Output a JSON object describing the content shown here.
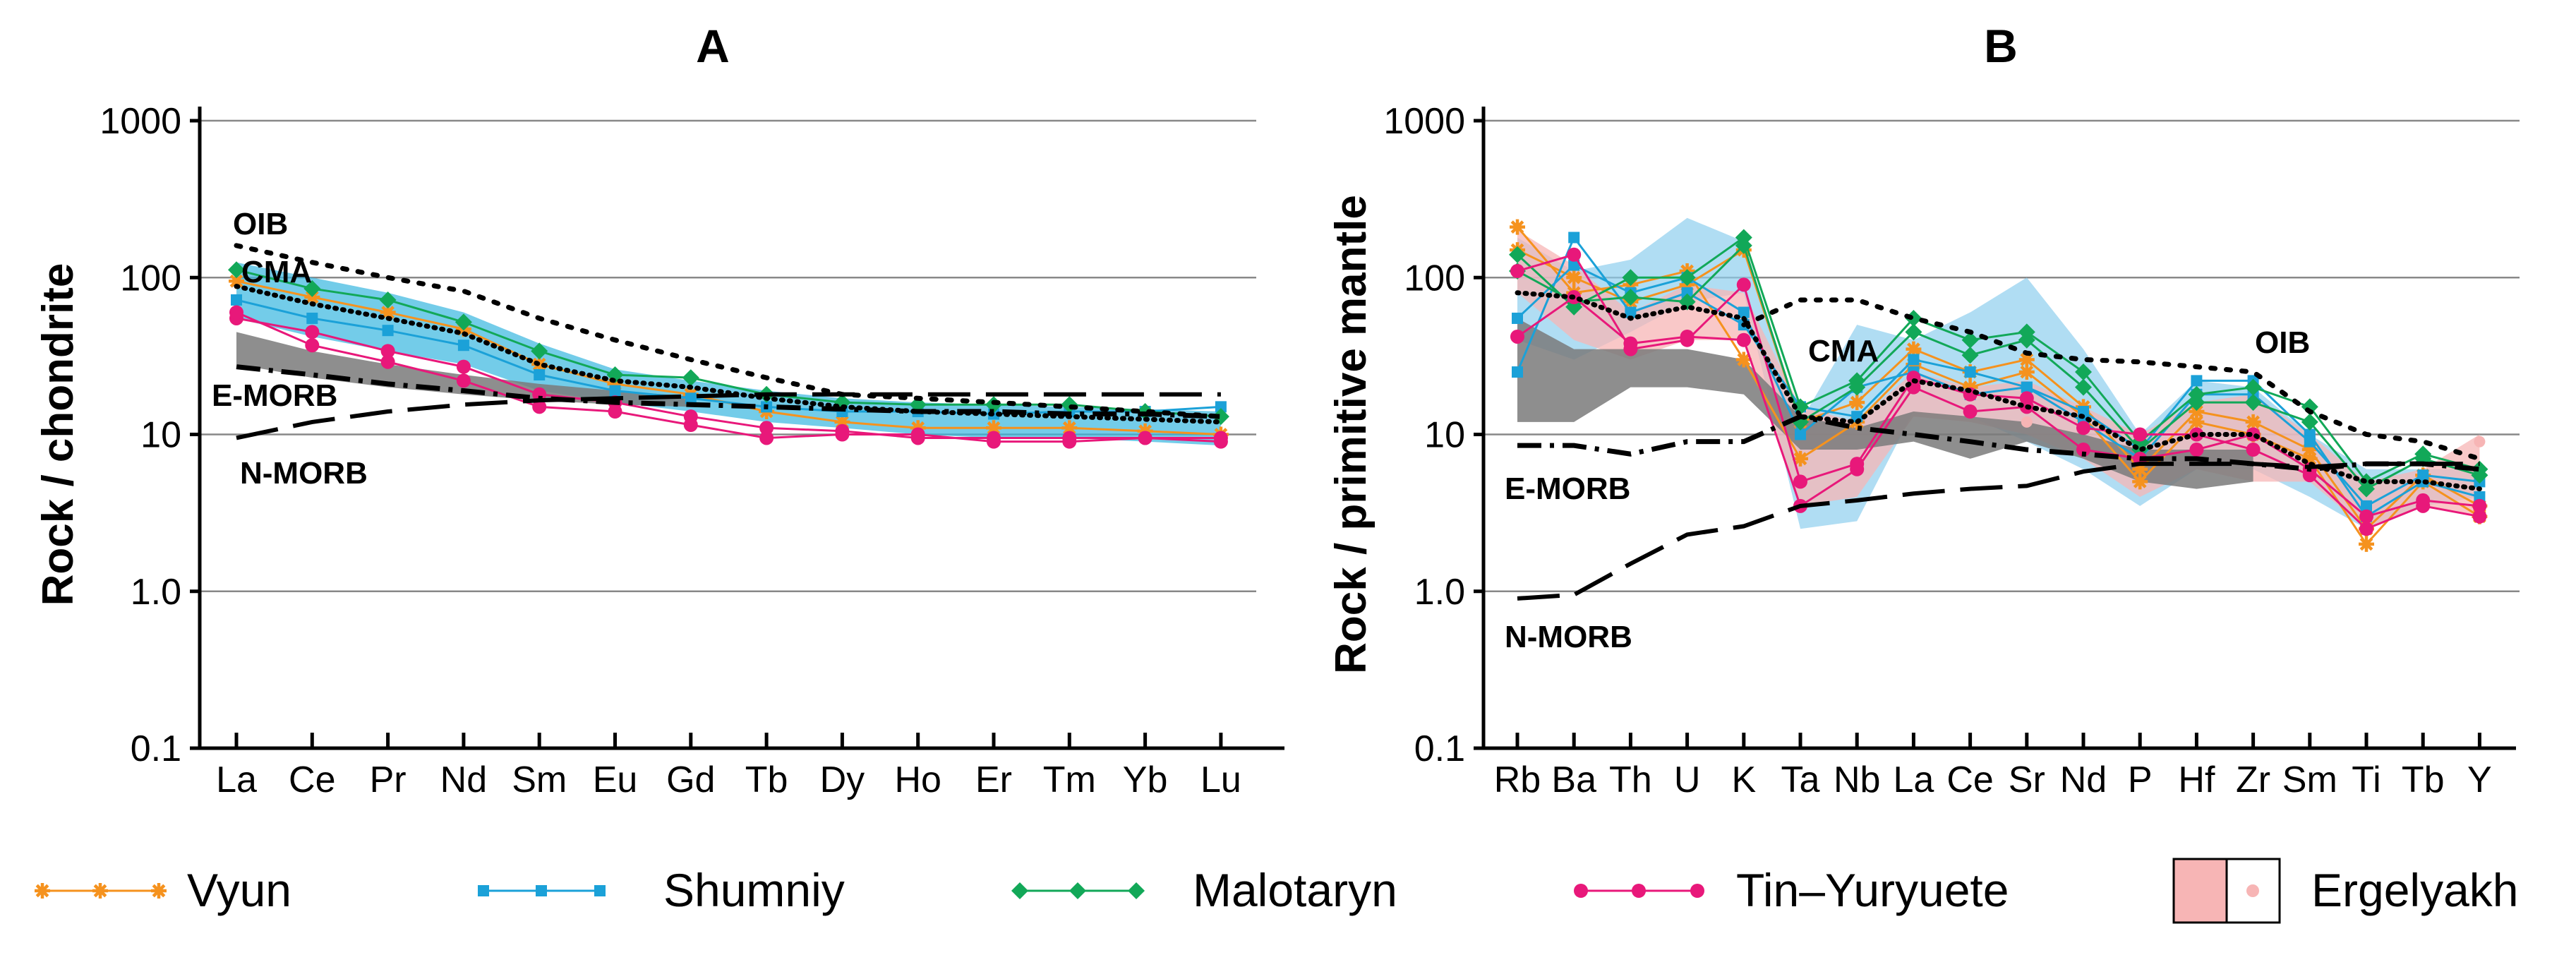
{
  "colors": {
    "vyun": "#f5921e",
    "shumniy": "#1ba1d8",
    "malotaryn": "#12a858",
    "tin_yuryuete": "#e8187a",
    "ergelyakh_fill": "#f7b5b5",
    "ergelyakh_point": "#f7b5b5",
    "cma_field_a": "#38b6e0",
    "cma_field_b": "#8fcfee",
    "grey_field": "#7a7a7a",
    "grid": "#888888",
    "axis": "#000000"
  },
  "legend": {
    "items": [
      {
        "key": "vyun",
        "label": "Vyun",
        "marker": "asterisk"
      },
      {
        "key": "shumniy",
        "label": "Shumniy",
        "marker": "square"
      },
      {
        "key": "malotaryn",
        "label": "Malotaryn",
        "marker": "diamond"
      },
      {
        "key": "tin_yuryuete",
        "label": "Tin–Yuryuete",
        "marker": "circle"
      },
      {
        "key": "ergelyakh",
        "label": "Ergelyakh",
        "marker": "box"
      }
    ]
  },
  "chart_data": [
    {
      "type": "line",
      "panel": "A",
      "title": "A",
      "xlabel": "",
      "ylabel": "Rock / chondrite",
      "yscale": "log",
      "ylim": [
        0.1,
        1000
      ],
      "yticks": [
        "0.1",
        "1.0",
        "10",
        "100",
        "1000"
      ],
      "grid": "horizontal",
      "categories": [
        "La",
        "Ce",
        "Pr",
        "Nd",
        "Sm",
        "Eu",
        "Gd",
        "Tb",
        "Dy",
        "Ho",
        "Er",
        "Tm",
        "Yb",
        "Lu"
      ],
      "references": [
        {
          "name": "OIB",
          "style": "dotted",
          "values": [
            160,
            125,
            100,
            82,
            55,
            40,
            30,
            23,
            18,
            17,
            16,
            15,
            14,
            13
          ]
        },
        {
          "name": "CMA",
          "style": "fine-dotted",
          "values": [
            88,
            68,
            55,
            44,
            28,
            22,
            20,
            17,
            15,
            14,
            13.5,
            13,
            12.5,
            12
          ]
        },
        {
          "name": "E-MORB",
          "style": "dash-dot",
          "values": [
            27,
            24,
            21,
            19,
            17,
            16,
            15.5,
            15,
            14.5,
            14,
            14,
            13.5,
            13.5,
            13
          ]
        },
        {
          "name": "N-MORB",
          "style": "long-dash",
          "values": [
            9.5,
            12,
            14,
            15.5,
            16.5,
            17,
            17.5,
            18,
            18,
            18,
            18,
            18,
            18,
            18
          ]
        }
      ],
      "fields": [
        {
          "name": "Vyun–Malotaryn field",
          "color_key": "cma_field_a",
          "upper": [
            125,
            100,
            80,
            60,
            38,
            26,
            22,
            19,
            17,
            16,
            15.5,
            15,
            14.5,
            14
          ],
          "lower": [
            55,
            42,
            34,
            28,
            19,
            16,
            14,
            12,
            11,
            10,
            9.5,
            9.5,
            9,
            8.5
          ]
        },
        {
          "name": "Ergelyakh field",
          "color_key": "grey_field",
          "upper": [
            45,
            34,
            28,
            24,
            21,
            19,
            17.5
          ],
          "lower": [
            28,
            23,
            20,
            18,
            16.5,
            15.5,
            15
          ]
        }
      ],
      "series": [
        {
          "name": "Vyun",
          "color_key": "vyun",
          "marker": "asterisk",
          "values": [
            [
              95,
              75,
              60,
              47,
              28,
              21,
              18,
              14,
              12,
              11,
              11,
              11,
              10.5,
              10
            ]
          ]
        },
        {
          "name": "Shumniy",
          "color_key": "shumniy",
          "marker": "square",
          "values": [
            [
              72,
              55,
              46,
              37,
              24,
              19,
              17,
              15,
              14,
              14,
              13.5,
              14,
              14,
              15
            ]
          ]
        },
        {
          "name": "Malotaryn",
          "color_key": "malotaryn",
          "marker": "diamond",
          "values": [
            [
              112,
              85,
              72,
              52,
              34,
              24,
              23,
              18,
              16,
              15.5,
              15.5,
              15.5,
              14,
              13
            ]
          ]
        },
        {
          "name": "Tin–Yuryuete",
          "color_key": "tin_yuryuete",
          "marker": "circle",
          "values": [
            [
              55,
              45,
              34,
              27,
              18,
              16,
              13,
              11,
              10.5,
              9.5,
              9.5,
              9.5,
              9.5,
              9.5
            ],
            [
              60,
              37,
              29,
              22,
              15,
              14,
              11.5,
              9.5,
              10,
              10,
              9,
              9,
              9.5,
              9
            ]
          ]
        }
      ],
      "annotations": [
        {
          "text": "OIB"
        },
        {
          "text": "CMA"
        },
        {
          "text": "E-MORB"
        },
        {
          "text": "N-MORB"
        }
      ]
    },
    {
      "type": "line",
      "panel": "B",
      "title": "B",
      "xlabel": "",
      "ylabel": "Rock / primitive mantle",
      "yscale": "log",
      "ylim": [
        0.1,
        1000
      ],
      "yticks": [
        "0.1",
        "1.0",
        "10",
        "100",
        "1000"
      ],
      "grid": "horizontal",
      "categories": [
        "Rb",
        "Ba",
        "Th",
        "U",
        "K",
        "Ta",
        "Nb",
        "La",
        "Ce",
        "Sr",
        "Nd",
        "P",
        "Hf",
        "Zr",
        "Sm",
        "Ti",
        "Tb",
        "Y"
      ],
      "references": [
        {
          "name": "OIB",
          "style": "dotted",
          "values": [
            null,
            null,
            null,
            null,
            50,
            72,
            72,
            55,
            45,
            33,
            30,
            29,
            27,
            25,
            14,
            10,
            9,
            7
          ]
        },
        {
          "name": "CMA",
          "style": "fine-dotted",
          "values": [
            80,
            75,
            55,
            65,
            55,
            13,
            12,
            22,
            19,
            15,
            13,
            8,
            10,
            10,
            6.5,
            5,
            5,
            4.5
          ]
        },
        {
          "name": "E-MORB",
          "style": "dash-dot",
          "values": [
            8.5,
            8.5,
            7.5,
            9,
            9,
            13,
            11,
            10,
            9,
            8,
            7.5,
            7,
            7,
            6.5,
            6,
            6.5,
            6.5,
            6
          ]
        },
        {
          "name": "N-MORB",
          "style": "long-dash",
          "values": [
            0.9,
            0.95,
            1.5,
            2.3,
            2.6,
            3.5,
            3.8,
            4.2,
            4.5,
            4.7,
            5.8,
            6.5,
            6.5,
            6.5,
            6.2,
            6.5,
            6.5,
            6.5
          ]
        }
      ],
      "fields": [
        {
          "name": "Shumniy field",
          "color_key": "cma_field_b",
          "upper": [
            180,
            110,
            130,
            240,
            170,
            12,
            50,
            40,
            60,
            100,
            35,
            10,
            22,
            20,
            10,
            6,
            6,
            6
          ],
          "lower": [
            40,
            30,
            45,
            70,
            80,
            2.5,
            2.8,
            14,
            13,
            9,
            6,
            3.5,
            6,
            6,
            4,
            2.5,
            3.5,
            4
          ]
        },
        {
          "name": "Ergelyakh field",
          "color_key": "ergelyakh_fill",
          "upper": [
            200,
            120,
            60,
            90,
            80,
            15,
            12,
            25,
            20,
            22,
            15,
            10,
            16,
            18,
            10,
            5,
            6,
            10
          ],
          "lower": [
            80,
            40,
            30,
            40,
            40,
            3.5,
            4,
            13,
            12,
            10,
            7,
            4,
            6,
            5,
            5,
            2.5,
            3.5,
            3
          ]
        },
        {
          "name": "grey field",
          "color_key": "grey_field",
          "upper": [
            55,
            35,
            35,
            35,
            30,
            13,
            11,
            14,
            13,
            12,
            10,
            8,
            8,
            8
          ],
          "lower": [
            12,
            12,
            20,
            20,
            18,
            8,
            8,
            9,
            7,
            9,
            7,
            5,
            4.5,
            5
          ]
        }
      ],
      "series": [
        {
          "name": "Vyun",
          "color_key": "vyun",
          "marker": "asterisk",
          "values": [
            [
              210,
              80,
              90,
              110,
              30,
              7,
              12,
              28,
              20,
              25,
              13,
              5,
              12,
              10,
              7,
              2,
              5,
              3
            ],
            [
              150,
              100,
              70,
              90,
              150,
              12,
              16,
              35,
              25,
              30,
              15,
              6,
              14,
              12,
              8,
              2.5,
              5.5,
              3.5
            ]
          ]
        },
        {
          "name": "Shumniy",
          "color_key": "shumniy",
          "marker": "square",
          "values": [
            [
              25,
              180,
              60,
              80,
              50,
              15,
              13,
              30,
              25,
              20,
              14,
              8,
              22,
              22,
              10,
              3,
              5,
              4
            ],
            [
              55,
              120,
              80,
              100,
              60,
              10,
              20,
              25,
              18,
              20,
              12,
              7,
              18,
              18,
              9,
              3.5,
              5.5,
              5
            ]
          ]
        },
        {
          "name": "Malotaryn",
          "color_key": "malotaryn",
          "marker": "diamond",
          "values": [
            [
              140,
              65,
              100,
              100,
              180,
              15,
              22,
              55,
              40,
              45,
              25,
              9,
              18,
              20,
              15,
              5,
              7.5,
              6
            ],
            [
              110,
              70,
              75,
              70,
              160,
              12,
              20,
              45,
              32,
              40,
              20,
              8,
              16,
              16,
              12,
              4.5,
              7,
              5.5
            ]
          ]
        },
        {
          "name": "Tin–Yuryuete",
          "color_key": "tin_yuryuete",
          "marker": "circle",
          "values": [
            [
              110,
              140,
              35,
              40,
              90,
              5,
              6.5,
              23,
              18,
              17,
              11,
              10,
              10,
              8,
              5.5,
              2.5,
              3.5,
              3
            ],
            [
              42,
              75,
              38,
              42,
              40,
              3.5,
              6,
              20,
              14,
              15,
              8,
              7,
              8,
              10,
              6,
              3,
              3.8,
              3.5
            ]
          ]
        },
        {
          "name": "Ergelyakh",
          "color_key": "ergelyakh_point",
          "marker": "dot",
          "values": [
            [
              null,
              null,
              null,
              null,
              null,
              null,
              null,
              null,
              null,
              12,
              null,
              null,
              null,
              null,
              null,
              null,
              null,
              9
            ]
          ]
        }
      ],
      "annotations": [
        {
          "text": "OIB"
        },
        {
          "text": "CMA"
        },
        {
          "text": "E-MORB"
        },
        {
          "text": "N-MORB"
        }
      ]
    }
  ]
}
